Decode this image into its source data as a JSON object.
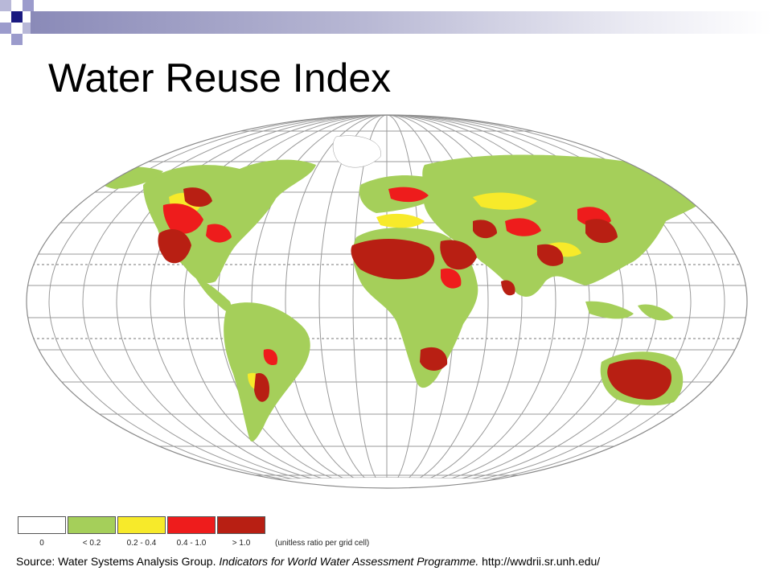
{
  "title": "Water Reuse Index",
  "colors": {
    "none": "#ffffff",
    "low": "#a5cf5a",
    "mid": "#f7ea2a",
    "high": "#ee1c1c",
    "very_high": "#b81f13",
    "accent_dark": "#1a1a80",
    "accent_light": "#9b9bcc"
  },
  "legend": {
    "items": [
      {
        "label": "0",
        "color": "#ffffff"
      },
      {
        "label": "< 0.2",
        "color": "#a5cf5a"
      },
      {
        "label": "0.2 - 0.4",
        "color": "#f7ea2a"
      },
      {
        "label": "0.4 - 1.0",
        "color": "#ee1c1c"
      },
      {
        "label": "> 1.0",
        "color": "#b81f13"
      }
    ],
    "unit_note": "(unitless ratio per grid cell)"
  },
  "source": {
    "prefix": "Source:  Water Systems Analysis Group.",
    "italic": "Indicators for World Water Assessment Programme.",
    "url": "http://wwdrii.sr.unh.edu/"
  }
}
